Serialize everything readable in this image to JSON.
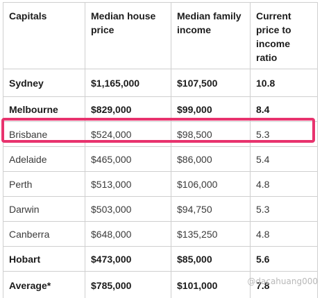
{
  "table": {
    "headers": [
      "Capitals",
      "Median house price",
      "Median family income",
      "Current price to income ratio"
    ],
    "rows": [
      {
        "city": "Sydney",
        "price": "$1,165,000",
        "income": "$107,500",
        "ratio": "10.8"
      },
      {
        "city": "Melbourne",
        "price": "$829,000",
        "income": "$99,000",
        "ratio": "8.4"
      },
      {
        "city": "Brisbane",
        "price": "$524,000",
        "income": "$98,500",
        "ratio": "5.3"
      },
      {
        "city": "Adelaide",
        "price": "$465,000",
        "income": "$86,000",
        "ratio": "5.4"
      },
      {
        "city": "Perth",
        "price": "$513,000",
        "income": "$106,000",
        "ratio": "4.8"
      },
      {
        "city": "Darwin",
        "price": "$503,000",
        "income": "$94,750",
        "ratio": "5.3"
      },
      {
        "city": "Canberra",
        "price": "$648,000",
        "income": "$135,250",
        "ratio": "4.8"
      },
      {
        "city": "Hobart",
        "price": "$473,000",
        "income": "$85,000",
        "ratio": "5.6"
      },
      {
        "city": "Average*",
        "price": "$785,000",
        "income": "$101,000",
        "ratio": "7.8"
      }
    ]
  },
  "highlight": {
    "row": "Brisbane",
    "color": "#e8336e"
  },
  "watermark": "@dacahuang000"
}
